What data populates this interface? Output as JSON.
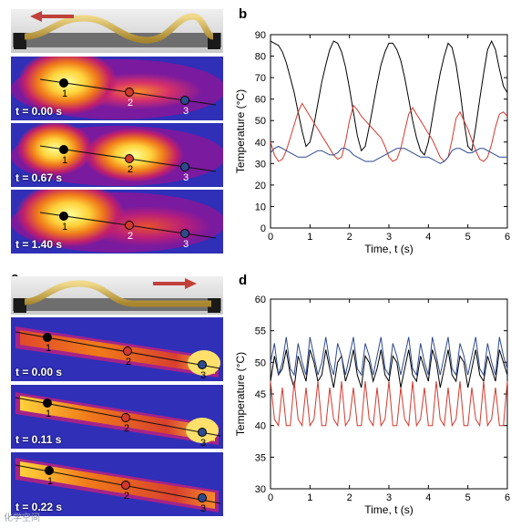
{
  "panels": {
    "a": {
      "letter": "a",
      "direction_arrow": "left-arrow",
      "frames": [
        {
          "t_label": "t = 0.00 s"
        },
        {
          "t_label": "t = 0.67 s"
        },
        {
          "t_label": "t = 1.40 s"
        }
      ]
    },
    "c": {
      "letter": "c",
      "direction_arrow": "right-arrow",
      "frames": [
        {
          "t_label": "t = 0.00 s"
        },
        {
          "t_label": "t = 0.11 s"
        },
        {
          "t_label": "t = 0.22 s"
        }
      ]
    },
    "b": {
      "letter": "b"
    },
    "d": {
      "letter": "d"
    }
  },
  "point_labels": [
    "1",
    "2",
    "3"
  ],
  "colors": {
    "point1": "#000000",
    "point2": "#d23a2e",
    "point3": "#2e4a8f",
    "arrow": "#c0403a"
  },
  "watermark": "化学空间",
  "chart_data": [
    {
      "type": "line",
      "panel": "b",
      "xlabel": "Time, t (s)",
      "ylabel": "Temperature (°C)",
      "xlim": [
        0,
        6
      ],
      "ylim": [
        0,
        90
      ],
      "xticks": [
        "0",
        "1",
        "2",
        "3",
        "4",
        "5",
        "6"
      ],
      "yticks": [
        "0",
        "10",
        "20",
        "30",
        "40",
        "50",
        "60",
        "70",
        "80",
        "90"
      ],
      "series": [
        {
          "color": "#000000",
          "x": [
            0,
            0.1,
            0.2,
            0.3,
            0.4,
            0.5,
            0.6,
            0.7,
            0.8,
            0.9,
            1.0,
            1.1,
            1.2,
            1.3,
            1.4,
            1.5,
            1.6,
            1.7,
            1.8,
            1.9,
            2.0,
            2.1,
            2.2,
            2.3,
            2.4,
            2.5,
            2.6,
            2.7,
            2.8,
            2.9,
            3.0,
            3.1,
            3.2,
            3.3,
            3.4,
            3.5,
            3.6,
            3.7,
            3.8,
            3.9,
            4.0,
            4.1,
            4.2,
            4.3,
            4.4,
            4.5,
            4.6,
            4.7,
            4.8,
            4.9,
            5.0,
            5.1,
            5.2,
            5.3,
            5.4,
            5.5,
            5.6,
            5.7,
            5.8,
            5.9,
            6.0
          ],
          "values": [
            87,
            86,
            85,
            82,
            77,
            70,
            63,
            54,
            45,
            38,
            40,
            48,
            58,
            68,
            76,
            83,
            87,
            86,
            82,
            75,
            65,
            54,
            43,
            36,
            38,
            47,
            57,
            67,
            76,
            82,
            86,
            86,
            83,
            78,
            70,
            60,
            50,
            42,
            36,
            34,
            40,
            51,
            62,
            72,
            80,
            86,
            84,
            76,
            64,
            50,
            38,
            36,
            47,
            60,
            72,
            83,
            87,
            83,
            74,
            66,
            63
          ]
        },
        {
          "color": "#d23a2e",
          "x": [
            0,
            0.1,
            0.2,
            0.3,
            0.4,
            0.5,
            0.6,
            0.7,
            0.8,
            0.9,
            1.0,
            1.1,
            1.2,
            1.3,
            1.4,
            1.5,
            1.6,
            1.7,
            1.8,
            1.9,
            2.0,
            2.1,
            2.2,
            2.3,
            2.4,
            2.5,
            2.6,
            2.7,
            2.8,
            2.9,
            3.0,
            3.1,
            3.2,
            3.3,
            3.4,
            3.5,
            3.6,
            3.7,
            3.8,
            3.9,
            4.0,
            4.1,
            4.2,
            4.3,
            4.4,
            4.5,
            4.6,
            4.7,
            4.8,
            4.9,
            5.0,
            5.1,
            5.2,
            5.3,
            5.4,
            5.5,
            5.6,
            5.7,
            5.8,
            5.9,
            6.0
          ],
          "values": [
            40,
            34,
            31,
            32,
            36,
            42,
            48,
            54,
            58,
            55,
            52,
            49,
            46,
            43,
            40,
            37,
            34,
            32,
            33,
            40,
            50,
            57,
            55,
            52,
            50,
            48,
            46,
            44,
            42,
            38,
            33,
            31,
            32,
            37,
            45,
            53,
            56,
            53,
            50,
            47,
            44,
            41,
            37,
            33,
            31,
            33,
            41,
            51,
            54,
            50,
            46,
            41,
            36,
            32,
            31,
            33,
            39,
            47,
            53,
            54,
            52
          ]
        },
        {
          "color": "#2e4a8f",
          "x": [
            0,
            0.1,
            0.2,
            0.3,
            0.4,
            0.5,
            0.6,
            0.7,
            0.8,
            0.9,
            1.0,
            1.1,
            1.2,
            1.3,
            1.4,
            1.5,
            1.6,
            1.7,
            1.8,
            1.9,
            2.0,
            2.1,
            2.2,
            2.3,
            2.4,
            2.5,
            2.6,
            2.7,
            2.8,
            2.9,
            3.0,
            3.1,
            3.2,
            3.3,
            3.4,
            3.5,
            3.6,
            3.7,
            3.8,
            3.9,
            4.0,
            4.1,
            4.2,
            4.3,
            4.4,
            4.5,
            4.6,
            4.7,
            4.8,
            4.9,
            5.0,
            5.1,
            5.2,
            5.3,
            5.4,
            5.5,
            5.6,
            5.7,
            5.8,
            5.9,
            6.0
          ],
          "values": [
            35,
            37,
            38,
            37,
            36,
            35,
            34,
            33,
            33,
            33,
            34,
            35,
            36,
            36,
            35,
            34,
            34,
            35,
            37,
            37,
            36,
            34,
            33,
            32,
            31,
            31,
            31,
            32,
            33,
            34,
            35,
            36,
            37,
            37,
            37,
            36,
            35,
            34,
            33,
            33,
            33,
            32,
            31,
            30,
            31,
            33,
            36,
            37,
            37,
            36,
            35,
            35,
            36,
            37,
            37,
            36,
            35,
            34,
            33,
            33,
            33
          ]
        }
      ]
    },
    {
      "type": "line",
      "panel": "d",
      "xlabel": "Time, t (s)",
      "ylabel": "Temperature (°C)",
      "xlim": [
        0,
        6
      ],
      "ylim": [
        30,
        60
      ],
      "xticks": [
        "0",
        "1",
        "2",
        "3",
        "4",
        "5",
        "6"
      ],
      "yticks": [
        "30",
        "35",
        "40",
        "45",
        "50",
        "55",
        "60"
      ],
      "series": [
        {
          "color": "#000000",
          "x": [
            0,
            0.1,
            0.2,
            0.3,
            0.4,
            0.5,
            0.6,
            0.7,
            0.8,
            0.9,
            1.0,
            1.1,
            1.2,
            1.3,
            1.4,
            1.5,
            1.6,
            1.7,
            1.8,
            1.9,
            2.0,
            2.1,
            2.2,
            2.3,
            2.4,
            2.5,
            2.6,
            2.7,
            2.8,
            2.9,
            3.0,
            3.1,
            3.2,
            3.3,
            3.4,
            3.5,
            3.6,
            3.7,
            3.8,
            3.9,
            4.0,
            4.1,
            4.2,
            4.3,
            4.4,
            4.5,
            4.6,
            4.7,
            4.8,
            4.9,
            5.0,
            5.1,
            5.2,
            5.3,
            5.4,
            5.5,
            5.6,
            5.7,
            5.8,
            5.9,
            6.0
          ],
          "values": [
            47,
            51,
            48,
            49,
            52,
            48,
            46,
            51,
            49,
            47,
            52,
            50,
            47,
            48,
            52,
            49,
            46,
            50,
            51,
            47,
            49,
            52,
            48,
            46,
            51,
            50,
            47,
            49,
            52,
            48,
            47,
            51,
            50,
            46,
            49,
            52,
            48,
            47,
            51,
            49,
            47,
            52,
            50,
            46,
            49,
            52,
            48,
            47,
            51,
            50,
            46,
            49,
            52,
            48,
            47,
            51,
            49,
            47,
            52,
            50,
            48
          ]
        },
        {
          "color": "#d23a2e",
          "x": [
            0,
            0.1,
            0.2,
            0.3,
            0.4,
            0.5,
            0.6,
            0.7,
            0.8,
            0.9,
            1.0,
            1.1,
            1.2,
            1.3,
            1.4,
            1.5,
            1.6,
            1.7,
            1.8,
            1.9,
            2.0,
            2.1,
            2.2,
            2.3,
            2.4,
            2.5,
            2.6,
            2.7,
            2.8,
            2.9,
            3.0,
            3.1,
            3.2,
            3.3,
            3.4,
            3.5,
            3.6,
            3.7,
            3.8,
            3.9,
            4.0,
            4.1,
            4.2,
            4.3,
            4.4,
            4.5,
            4.6,
            4.7,
            4.8,
            4.9,
            5.0,
            5.1,
            5.2,
            5.3,
            5.4,
            5.5,
            5.6,
            5.7,
            5.8,
            5.9,
            6.0
          ],
          "values": [
            47,
            41,
            40,
            46,
            40,
            40,
            47,
            41,
            40,
            46,
            40,
            41,
            47,
            40,
            40,
            46,
            41,
            40,
            47,
            40,
            41,
            46,
            40,
            40,
            47,
            41,
            40,
            46,
            40,
            41,
            47,
            40,
            40,
            46,
            41,
            40,
            47,
            40,
            41,
            46,
            40,
            40,
            47,
            41,
            40,
            46,
            40,
            41,
            47,
            40,
            40,
            46,
            41,
            40,
            47,
            40,
            41,
            46,
            40,
            40,
            47
          ]
        },
        {
          "color": "#2e4a8f",
          "x": [
            0,
            0.1,
            0.2,
            0.3,
            0.4,
            0.5,
            0.6,
            0.7,
            0.8,
            0.9,
            1.0,
            1.1,
            1.2,
            1.3,
            1.4,
            1.5,
            1.6,
            1.7,
            1.8,
            1.9,
            2.0,
            2.1,
            2.2,
            2.3,
            2.4,
            2.5,
            2.6,
            2.7,
            2.8,
            2.9,
            3.0,
            3.1,
            3.2,
            3.3,
            3.4,
            3.5,
            3.6,
            3.7,
            3.8,
            3.9,
            4.0,
            4.1,
            4.2,
            4.3,
            4.4,
            4.5,
            4.6,
            4.7,
            4.8,
            4.9,
            5.0,
            5.1,
            5.2,
            5.3,
            5.4,
            5.5,
            5.6,
            5.7,
            5.8,
            5.9,
            6.0
          ],
          "values": [
            50,
            53,
            48,
            50,
            54,
            49,
            48,
            53,
            50,
            48,
            54,
            51,
            48,
            50,
            54,
            50,
            48,
            53,
            51,
            48,
            51,
            54,
            49,
            48,
            53,
            51,
            48,
            51,
            54,
            49,
            48,
            53,
            51,
            48,
            51,
            54,
            49,
            48,
            53,
            50,
            48,
            54,
            51,
            48,
            51,
            54,
            49,
            48,
            53,
            51,
            48,
            51,
            54,
            49,
            48,
            53,
            50,
            48,
            54,
            51,
            49
          ]
        }
      ]
    }
  ]
}
